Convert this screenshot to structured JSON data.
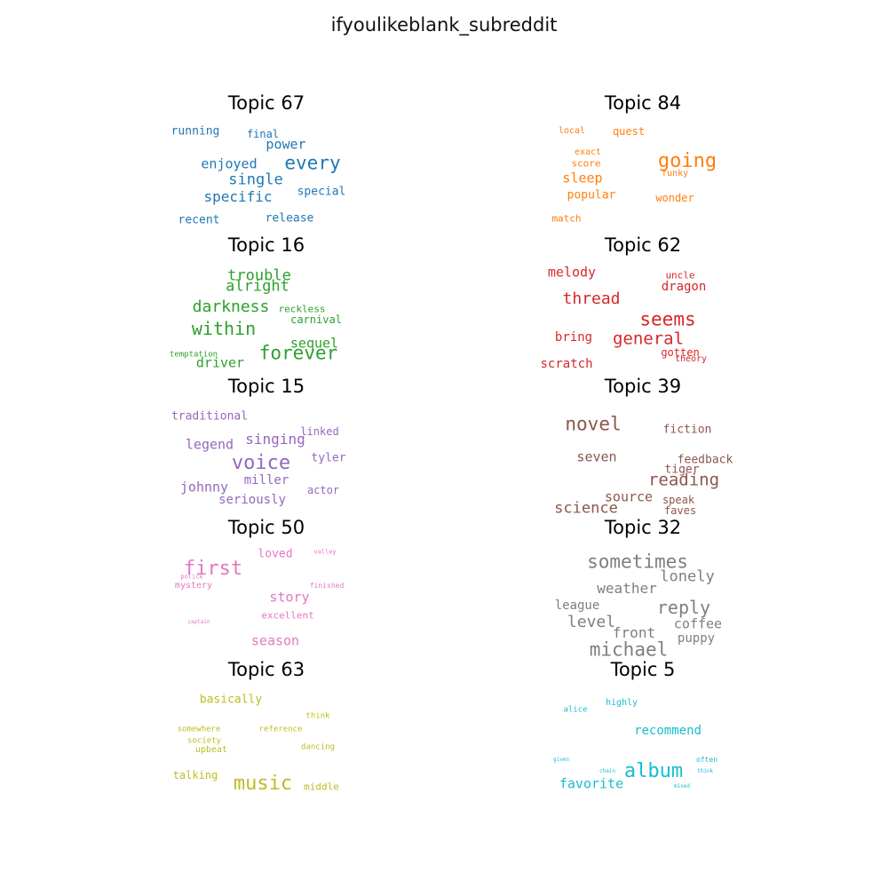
{
  "title": "ifyoulikeblank_subreddit",
  "chart_data": {
    "type": "wordcloud",
    "title": "ifyoulikeblank_subreddit",
    "panels": [
      {
        "topic": "Topic 67",
        "color": "#1f77b4",
        "words": [
          {
            "w": "running",
            "x": 0.1,
            "y": 0.15,
            "s": 13
          },
          {
            "w": "final",
            "x": 0.48,
            "y": 0.17,
            "s": 12
          },
          {
            "w": "power",
            "x": 0.61,
            "y": 0.26,
            "s": 15
          },
          {
            "w": "enjoyed",
            "x": 0.29,
            "y": 0.42,
            "s": 15
          },
          {
            "w": "every",
            "x": 0.76,
            "y": 0.41,
            "s": 21
          },
          {
            "w": "single",
            "x": 0.44,
            "y": 0.55,
            "s": 17
          },
          {
            "w": "special",
            "x": 0.81,
            "y": 0.65,
            "s": 13
          },
          {
            "w": "specific",
            "x": 0.34,
            "y": 0.69,
            "s": 16
          },
          {
            "w": "recent",
            "x": 0.12,
            "y": 0.88,
            "s": 13
          },
          {
            "w": "release",
            "x": 0.63,
            "y": 0.87,
            "s": 13
          }
        ]
      },
      {
        "topic": "Topic 84",
        "color": "#ff7f0e",
        "words": [
          {
            "w": "local",
            "x": 0.1,
            "y": 0.15,
            "s": 10
          },
          {
            "w": "quest",
            "x": 0.42,
            "y": 0.15,
            "s": 12
          },
          {
            "w": "exact",
            "x": 0.19,
            "y": 0.32,
            "s": 10
          },
          {
            "w": "going",
            "x": 0.75,
            "y": 0.4,
            "s": 22
          },
          {
            "w": "score",
            "x": 0.18,
            "y": 0.41,
            "s": 11
          },
          {
            "w": "funky",
            "x": 0.68,
            "y": 0.5,
            "s": 10
          },
          {
            "w": "sleep",
            "x": 0.16,
            "y": 0.54,
            "s": 15
          },
          {
            "w": "popular",
            "x": 0.21,
            "y": 0.68,
            "s": 13
          },
          {
            "w": "wonder",
            "x": 0.68,
            "y": 0.7,
            "s": 12
          },
          {
            "w": "match",
            "x": 0.07,
            "y": 0.87,
            "s": 11
          }
        ]
      },
      {
        "topic": "Topic 16",
        "color": "#2ca02c",
        "words": [
          {
            "w": "trouble",
            "x": 0.46,
            "y": 0.17,
            "s": 17
          },
          {
            "w": "alright",
            "x": 0.45,
            "y": 0.26,
            "s": 17
          },
          {
            "w": "darkness",
            "x": 0.3,
            "y": 0.43,
            "s": 18
          },
          {
            "w": "reckless",
            "x": 0.7,
            "y": 0.44,
            "s": 11
          },
          {
            "w": "carnival",
            "x": 0.78,
            "y": 0.53,
            "s": 12
          },
          {
            "w": "within",
            "x": 0.26,
            "y": 0.6,
            "s": 20
          },
          {
            "w": "sequel",
            "x": 0.77,
            "y": 0.73,
            "s": 15
          },
          {
            "w": "temptation",
            "x": 0.09,
            "y": 0.82,
            "s": 9
          },
          {
            "w": "forever",
            "x": 0.68,
            "y": 0.81,
            "s": 21
          },
          {
            "w": "driver",
            "x": 0.24,
            "y": 0.89,
            "s": 15
          }
        ]
      },
      {
        "topic": "Topic 62",
        "color": "#d62728",
        "words": [
          {
            "w": "melody",
            "x": 0.1,
            "y": 0.14,
            "s": 15
          },
          {
            "w": "uncle",
            "x": 0.71,
            "y": 0.16,
            "s": 11
          },
          {
            "w": "dragon",
            "x": 0.73,
            "y": 0.26,
            "s": 14
          },
          {
            "w": "thread",
            "x": 0.21,
            "y": 0.36,
            "s": 18
          },
          {
            "w": "seems",
            "x": 0.64,
            "y": 0.53,
            "s": 21
          },
          {
            "w": "bring",
            "x": 0.11,
            "y": 0.68,
            "s": 14
          },
          {
            "w": "general",
            "x": 0.53,
            "y": 0.69,
            "s": 19
          },
          {
            "w": "gotten",
            "x": 0.71,
            "y": 0.8,
            "s": 12
          },
          {
            "w": "theory",
            "x": 0.77,
            "y": 0.86,
            "s": 10
          },
          {
            "w": "scratch",
            "x": 0.07,
            "y": 0.9,
            "s": 14
          }
        ]
      },
      {
        "topic": "Topic 15",
        "color": "#9467bd",
        "words": [
          {
            "w": "traditional",
            "x": 0.18,
            "y": 0.16,
            "s": 13
          },
          {
            "w": "linked",
            "x": 0.8,
            "y": 0.29,
            "s": 12
          },
          {
            "w": "singing",
            "x": 0.55,
            "y": 0.35,
            "s": 16
          },
          {
            "w": "legend",
            "x": 0.18,
            "y": 0.4,
            "s": 15
          },
          {
            "w": "voice",
            "x": 0.47,
            "y": 0.55,
            "s": 22
          },
          {
            "w": "tyler",
            "x": 0.85,
            "y": 0.51,
            "s": 13
          },
          {
            "w": "miller",
            "x": 0.5,
            "y": 0.69,
            "s": 14
          },
          {
            "w": "johnny",
            "x": 0.15,
            "y": 0.75,
            "s": 15
          },
          {
            "w": "actor",
            "x": 0.82,
            "y": 0.77,
            "s": 12
          },
          {
            "w": "seriously",
            "x": 0.42,
            "y": 0.85,
            "s": 14
          }
        ]
      },
      {
        "topic": "Topic 39",
        "color": "#8c564b",
        "words": [
          {
            "w": "novel",
            "x": 0.22,
            "y": 0.23,
            "s": 21
          },
          {
            "w": "fiction",
            "x": 0.75,
            "y": 0.27,
            "s": 13
          },
          {
            "w": "seven",
            "x": 0.24,
            "y": 0.5,
            "s": 15
          },
          {
            "w": "feedback",
            "x": 0.85,
            "y": 0.52,
            "s": 13
          },
          {
            "w": "tiger",
            "x": 0.72,
            "y": 0.6,
            "s": 13
          },
          {
            "w": "reading",
            "x": 0.73,
            "y": 0.69,
            "s": 19
          },
          {
            "w": "source",
            "x": 0.42,
            "y": 0.83,
            "s": 15
          },
          {
            "w": "speak",
            "x": 0.7,
            "y": 0.85,
            "s": 12
          },
          {
            "w": "science",
            "x": 0.18,
            "y": 0.93,
            "s": 17
          },
          {
            "w": "faves",
            "x": 0.71,
            "y": 0.94,
            "s": 12
          }
        ]
      },
      {
        "topic": "Topic 50",
        "color": "#e377c2",
        "words": [
          {
            "w": "loved",
            "x": 0.55,
            "y": 0.13,
            "s": 13
          },
          {
            "w": "valley",
            "x": 0.83,
            "y": 0.12,
            "s": 7
          },
          {
            "w": "first",
            "x": 0.2,
            "y": 0.26,
            "s": 22
          },
          {
            "w": "police",
            "x": 0.08,
            "y": 0.32,
            "s": 7
          },
          {
            "w": "mystery",
            "x": 0.09,
            "y": 0.4,
            "s": 10
          },
          {
            "w": "finished",
            "x": 0.84,
            "y": 0.4,
            "s": 8
          },
          {
            "w": "story",
            "x": 0.63,
            "y": 0.49,
            "s": 15
          },
          {
            "w": "excellent",
            "x": 0.62,
            "y": 0.64,
            "s": 11
          },
          {
            "w": "captain",
            "x": 0.12,
            "y": 0.7,
            "s": 6
          },
          {
            "w": "season",
            "x": 0.55,
            "y": 0.85,
            "s": 15
          }
        ]
      },
      {
        "topic": "Topic 32",
        "color": "#7f7f7f",
        "words": [
          {
            "w": "sometimes",
            "x": 0.47,
            "y": 0.2,
            "s": 21
          },
          {
            "w": "lonely",
            "x": 0.75,
            "y": 0.32,
            "s": 17
          },
          {
            "w": "weather",
            "x": 0.41,
            "y": 0.42,
            "s": 16
          },
          {
            "w": "league",
            "x": 0.13,
            "y": 0.56,
            "s": 14
          },
          {
            "w": "reply",
            "x": 0.73,
            "y": 0.57,
            "s": 20
          },
          {
            "w": "level",
            "x": 0.21,
            "y": 0.7,
            "s": 18
          },
          {
            "w": "coffee",
            "x": 0.81,
            "y": 0.71,
            "s": 15
          },
          {
            "w": "front",
            "x": 0.45,
            "y": 0.79,
            "s": 16
          },
          {
            "w": "puppy",
            "x": 0.8,
            "y": 0.83,
            "s": 14
          },
          {
            "w": "michael",
            "x": 0.42,
            "y": 0.93,
            "s": 21
          }
        ]
      },
      {
        "topic": "Topic 63",
        "color": "#bcbd22",
        "words": [
          {
            "w": "basically",
            "x": 0.3,
            "y": 0.16,
            "s": 13
          },
          {
            "w": "think",
            "x": 0.79,
            "y": 0.3,
            "s": 9
          },
          {
            "w": "somewhere",
            "x": 0.12,
            "y": 0.41,
            "s": 9
          },
          {
            "w": "reference",
            "x": 0.58,
            "y": 0.41,
            "s": 9
          },
          {
            "w": "society",
            "x": 0.15,
            "y": 0.51,
            "s": 9
          },
          {
            "w": "upbeat",
            "x": 0.19,
            "y": 0.58,
            "s": 10
          },
          {
            "w": "dancing",
            "x": 0.79,
            "y": 0.56,
            "s": 9
          },
          {
            "w": "talking",
            "x": 0.1,
            "y": 0.79,
            "s": 12
          },
          {
            "w": "music",
            "x": 0.48,
            "y": 0.86,
            "s": 22
          },
          {
            "w": "middle",
            "x": 0.81,
            "y": 0.88,
            "s": 11
          }
        ]
      },
      {
        "topic": "Topic 5",
        "color": "#17becf",
        "words": [
          {
            "w": "alice",
            "x": 0.12,
            "y": 0.25,
            "s": 9
          },
          {
            "w": "highly",
            "x": 0.38,
            "y": 0.19,
            "s": 10
          },
          {
            "w": "recommend",
            "x": 0.64,
            "y": 0.42,
            "s": 14
          },
          {
            "w": "given",
            "x": 0.04,
            "y": 0.66,
            "s": 6
          },
          {
            "w": "often",
            "x": 0.86,
            "y": 0.66,
            "s": 8
          },
          {
            "w": "chain",
            "x": 0.3,
            "y": 0.76,
            "s": 6
          },
          {
            "w": "album",
            "x": 0.56,
            "y": 0.76,
            "s": 22
          },
          {
            "w": "think",
            "x": 0.85,
            "y": 0.76,
            "s": 6
          },
          {
            "w": "favorite",
            "x": 0.21,
            "y": 0.86,
            "s": 15
          },
          {
            "w": "mixed",
            "x": 0.72,
            "y": 0.88,
            "s": 6
          }
        ]
      }
    ]
  }
}
